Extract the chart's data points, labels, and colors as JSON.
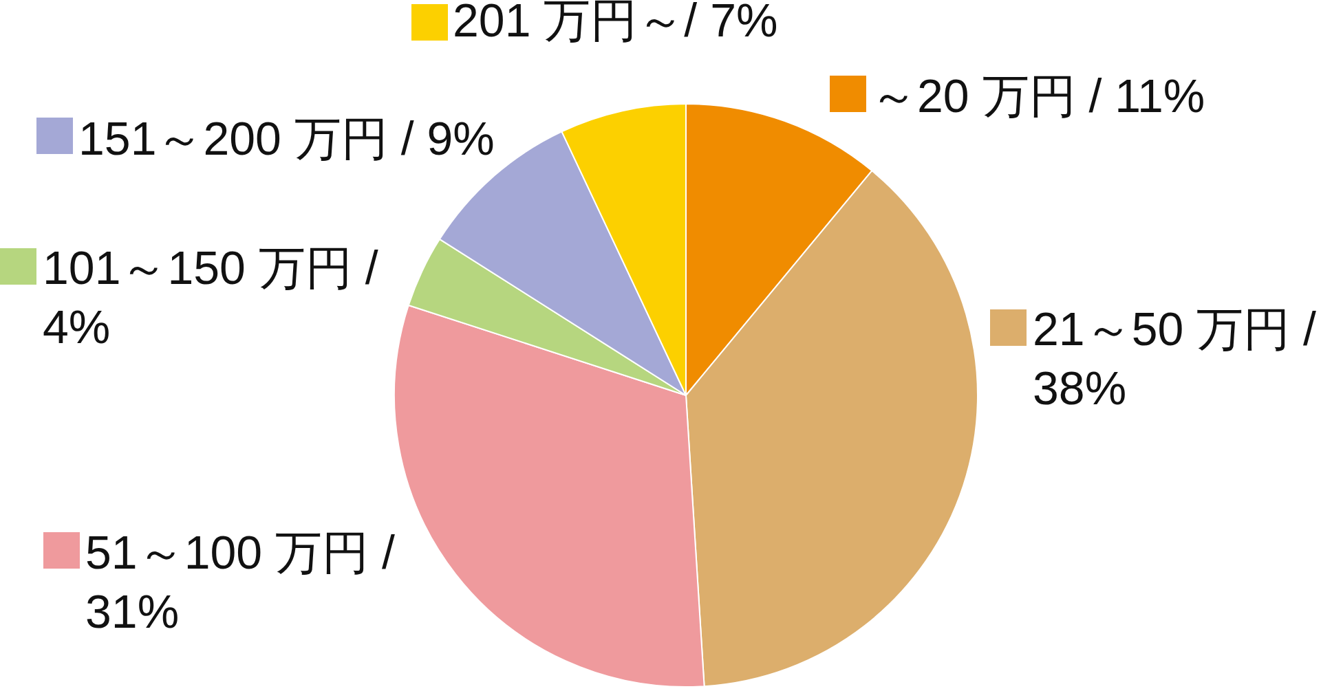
{
  "chart_data": {
    "type": "pie",
    "categories": [
      "～20 万円 /",
      "21～50 万円 /",
      "51～100 万円 /",
      "101～150 万円 /",
      "151～200 万円 /",
      "201 万円～/"
    ],
    "values": [
      11,
      38,
      31,
      4,
      9,
      7
    ],
    "value_labels": [
      "11%",
      "38%",
      "31%",
      "4%",
      "9%",
      "7%"
    ],
    "colors": [
      "#f08c00",
      "#dcae6c",
      "#ef9a9d",
      "#b6d67f",
      "#a4a8d6",
      "#fcd000"
    ],
    "legend": "left"
  }
}
